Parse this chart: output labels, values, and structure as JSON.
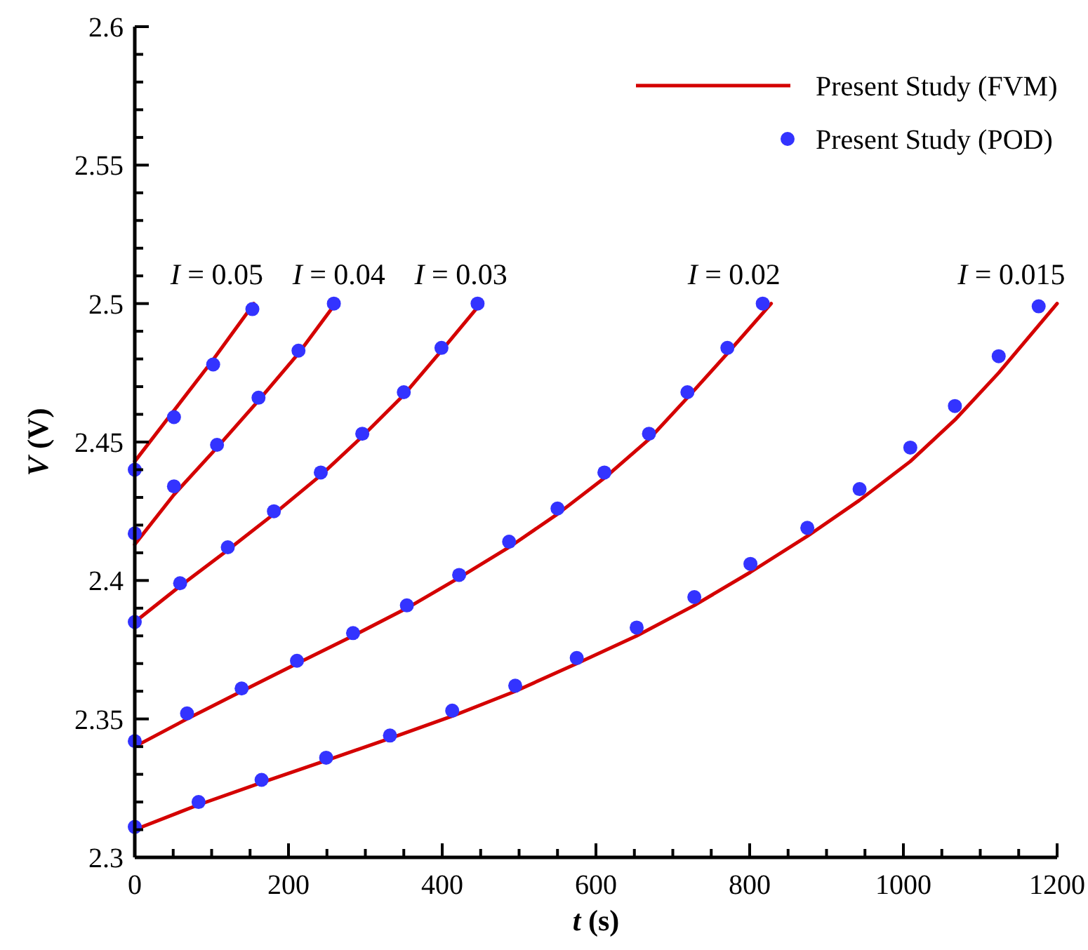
{
  "chart_data": {
    "type": "line",
    "xlabel": "t (s)",
    "ylabel": "V (V)",
    "xlim": [
      0,
      1200
    ],
    "ylim": [
      2.3,
      2.6
    ],
    "xticks": [
      0,
      {
        "value": 50,
        "label": null
      },
      {
        "value": 100,
        "label": null
      },
      {
        "value": 150,
        "label": null
      },
      200,
      {
        "value": 250,
        "label": null
      },
      {
        "value": 300,
        "label": null
      },
      {
        "value": 350,
        "label": null
      },
      400,
      {
        "value": 450,
        "label": null
      },
      {
        "value": 500,
        "label": null
      },
      {
        "value": 550,
        "label": null
      },
      600,
      {
        "value": 650,
        "label": null
      },
      {
        "value": 700,
        "label": null
      },
      {
        "value": 750,
        "label": null
      },
      800,
      {
        "value": 850,
        "label": null
      },
      {
        "value": 900,
        "label": null
      },
      {
        "value": 950,
        "label": null
      },
      1000,
      {
        "value": 1050,
        "label": null
      },
      {
        "value": 1100,
        "label": null
      },
      {
        "value": 1150,
        "label": null
      },
      1200
    ],
    "yticks": [
      2.3,
      {
        "value": 2.31,
        "label": null
      },
      {
        "value": 2.32,
        "label": null
      },
      {
        "value": 2.33,
        "label": null
      },
      {
        "value": 2.34,
        "label": null
      },
      2.35,
      {
        "value": 2.36,
        "label": null
      },
      {
        "value": 2.37,
        "label": null
      },
      {
        "value": 2.38,
        "label": null
      },
      {
        "value": 2.39,
        "label": null
      },
      2.4,
      {
        "value": 2.41,
        "label": null
      },
      {
        "value": 2.42,
        "label": null
      },
      {
        "value": 2.43,
        "label": null
      },
      {
        "value": 2.44,
        "label": null
      },
      2.45,
      {
        "value": 2.46,
        "label": null
      },
      {
        "value": 2.47,
        "label": null
      },
      {
        "value": 2.48,
        "label": null
      },
      {
        "value": 2.49,
        "label": null
      },
      2.5,
      {
        "value": 2.51,
        "label": null
      },
      {
        "value": 2.52,
        "label": null
      },
      {
        "value": 2.53,
        "label": null
      },
      {
        "value": 2.54,
        "label": null
      },
      2.55,
      {
        "value": 2.56,
        "label": null
      },
      {
        "value": 2.57,
        "label": null
      },
      {
        "value": 2.58,
        "label": null
      },
      {
        "value": 2.59,
        "label": null
      },
      2.6
    ],
    "grid": false,
    "legend": "top right",
    "series": [
      {
        "name": "Present Study (FVM)",
        "color": "#d40000",
        "line_style": "solid",
        "marker": "none",
        "x": [
          0,
          50,
          100,
          155
        ],
        "values": [
          2.443,
          2.461,
          2.479,
          2.5
        ]
      },
      {
        "color": "#d40000",
        "line_style": "solid",
        "marker": "none",
        "x": [
          0,
          51,
          107,
          161,
          213,
          261
        ],
        "values": [
          2.413,
          2.431,
          2.448,
          2.465,
          2.482,
          2.5
        ]
      },
      {
        "color": "#d40000",
        "line_style": "solid",
        "marker": "none",
        "x": [
          0,
          59,
          121,
          181,
          242,
          296,
          350,
          399,
          450
        ],
        "values": [
          2.385,
          2.398,
          2.411,
          2.424,
          2.438,
          2.452,
          2.467,
          2.483,
          2.5
        ]
      },
      {
        "color": "#d40000",
        "line_style": "solid",
        "marker": "none",
        "x": [
          0,
          68,
          139,
          211,
          284,
          354,
          422,
          487,
          550,
          611,
          669,
          719,
          771,
          828
        ],
        "values": [
          2.34,
          2.35,
          2.36,
          2.37,
          2.38,
          2.39,
          2.401,
          2.412,
          2.424,
          2.437,
          2.451,
          2.466,
          2.482,
          2.5
        ]
      },
      {
        "color": "#d40000",
        "line_style": "solid",
        "marker": "none",
        "x": [
          0,
          83,
          165,
          249,
          332,
          413,
          495,
          575,
          653,
          728,
          801,
          875,
          943,
          1009,
          1067,
          1124,
          1200
        ],
        "values": [
          2.31,
          2.319,
          2.327,
          2.335,
          2.343,
          2.351,
          2.36,
          2.37,
          2.38,
          2.391,
          2.403,
          2.416,
          2.429,
          2.443,
          2.458,
          2.475,
          2.5
        ]
      },
      {
        "type": "scatter",
        "name": "Present Study (POD)",
        "color": "#3333ff",
        "marker": "circle",
        "x": [
          0,
          51,
          102,
          153
        ],
        "values": [
          2.44,
          2.459,
          2.478,
          2.498
        ]
      },
      {
        "type": "scatter",
        "color": "#3333ff",
        "marker": "circle",
        "x": [
          0,
          51,
          107,
          161,
          213,
          259
        ],
        "values": [
          2.417,
          2.434,
          2.449,
          2.466,
          2.483,
          2.5
        ]
      },
      {
        "type": "scatter",
        "color": "#3333ff",
        "marker": "circle",
        "x": [
          0,
          59,
          121,
          181,
          242,
          296,
          350,
          399,
          446
        ],
        "values": [
          2.385,
          2.399,
          2.412,
          2.425,
          2.439,
          2.453,
          2.468,
          2.484,
          2.5
        ]
      },
      {
        "type": "scatter",
        "color": "#3333ff",
        "marker": "circle",
        "x": [
          0,
          68,
          139,
          211,
          284,
          354,
          422,
          487,
          550,
          611,
          669,
          719,
          771,
          817
        ],
        "values": [
          2.342,
          2.352,
          2.361,
          2.371,
          2.381,
          2.391,
          2.402,
          2.414,
          2.426,
          2.439,
          2.453,
          2.468,
          2.484,
          2.5
        ]
      },
      {
        "type": "scatter",
        "color": "#3333ff",
        "marker": "circle",
        "x": [
          0,
          83,
          165,
          249,
          332,
          413,
          495,
          575,
          653,
          728,
          801,
          875,
          943,
          1009,
          1067,
          1124,
          1176
        ],
        "values": [
          2.311,
          2.32,
          2.328,
          2.336,
          2.344,
          2.353,
          2.362,
          2.372,
          2.383,
          2.394,
          2.406,
          2.419,
          2.433,
          2.448,
          2.463,
          2.481,
          2.499
        ]
      }
    ],
    "annotations": [
      {
        "text": "I = 0.05",
        "x": 155,
        "y": 2.5
      },
      {
        "text": "I = 0.04",
        "x": 261,
        "y": 2.5
      },
      {
        "text": "I = 0.03",
        "x": 450,
        "y": 2.5
      },
      {
        "text": "I = 0.02",
        "x": 828,
        "y": 2.5
      },
      {
        "text": "I = 0.015",
        "x": 1200,
        "y": 2.5
      }
    ]
  }
}
